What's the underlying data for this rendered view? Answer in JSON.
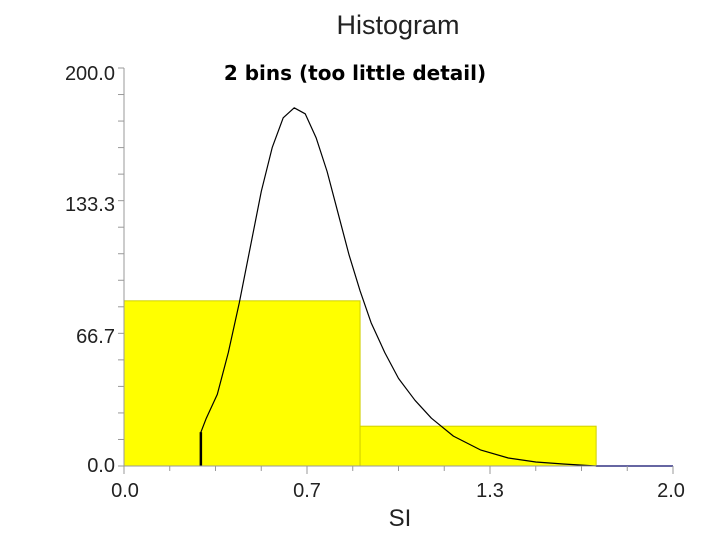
{
  "chart_data": {
    "type": "bar",
    "title": "Histogram",
    "subtitle": "2 bins (too little detail)",
    "xlabel": "SI",
    "ylabel": "",
    "xlim": [
      0.0,
      2.0
    ],
    "ylim": [
      0.0,
      200.0
    ],
    "x_tick_labels": [
      "0.0",
      "0.7",
      "1.3",
      "2.0"
    ],
    "y_tick_labels": [
      "200.0",
      "133.3",
      "66.7",
      "0.0"
    ],
    "grid": false,
    "legend": "none",
    "bins": [
      {
        "x0": 0.0,
        "x1": 0.86,
        "value": 83
      },
      {
        "x0": 0.86,
        "x1": 1.72,
        "value": 20
      }
    ],
    "density_curve": {
      "x": [
        0.28,
        0.28,
        0.3,
        0.34,
        0.38,
        0.42,
        0.46,
        0.5,
        0.54,
        0.58,
        0.62,
        0.66,
        0.7,
        0.74,
        0.78,
        0.82,
        0.86,
        0.9,
        0.95,
        1.0,
        1.06,
        1.12,
        1.2,
        1.3,
        1.4,
        1.5,
        1.6,
        1.72,
        2.0
      ],
      "y": [
        0.0,
        17,
        24,
        36,
        57,
        82,
        110,
        138,
        160,
        175,
        180,
        177,
        165,
        148,
        127,
        106,
        88,
        72,
        57,
        44,
        33,
        24,
        15,
        8,
        4,
        2,
        1,
        0,
        0
      ]
    },
    "colors": {
      "bar_fill": "#ffff00",
      "bar_stroke": "#d0d000",
      "curve": "#000000",
      "axis": "#999999",
      "baseline": "#3333aa"
    }
  }
}
